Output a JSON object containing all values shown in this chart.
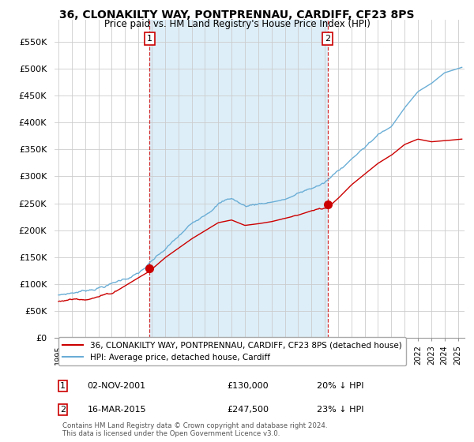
{
  "title": "36, CLONAKILTY WAY, PONTPRENNAU, CARDIFF, CF23 8PS",
  "subtitle": "Price paid vs. HM Land Registry's House Price Index (HPI)",
  "ylabel_ticks": [
    "£0",
    "£50K",
    "£100K",
    "£150K",
    "£200K",
    "£250K",
    "£300K",
    "£350K",
    "£400K",
    "£450K",
    "£500K",
    "£550K"
  ],
  "ytick_values": [
    0,
    50000,
    100000,
    150000,
    200000,
    250000,
    300000,
    350000,
    400000,
    450000,
    500000,
    550000
  ],
  "ylim": [
    0,
    590000
  ],
  "xlim_start": 1994.7,
  "xlim_end": 2025.5,
  "hpi_color": "#6aaed6",
  "hpi_fill_color": "#ddeef8",
  "price_color": "#cc0000",
  "marker1_year": 2001.84,
  "marker1_price": 130000,
  "marker1_label": "1",
  "marker1_date": "02-NOV-2001",
  "marker1_amount": "£130,000",
  "marker1_pct": "20% ↓ HPI",
  "marker2_year": 2015.21,
  "marker2_price": 247500,
  "marker2_label": "2",
  "marker2_date": "16-MAR-2015",
  "marker2_amount": "£247,500",
  "marker2_pct": "23% ↓ HPI",
  "legend_label1": "36, CLONAKILTY WAY, PONTPRENNAU, CARDIFF, CF23 8PS (detached house)",
  "legend_label2": "HPI: Average price, detached house, Cardiff",
  "footnote": "Contains HM Land Registry data © Crown copyright and database right 2024.\nThis data is licensed under the Open Government Licence v3.0.",
  "background_color": "#ffffff",
  "grid_color": "#cccccc"
}
